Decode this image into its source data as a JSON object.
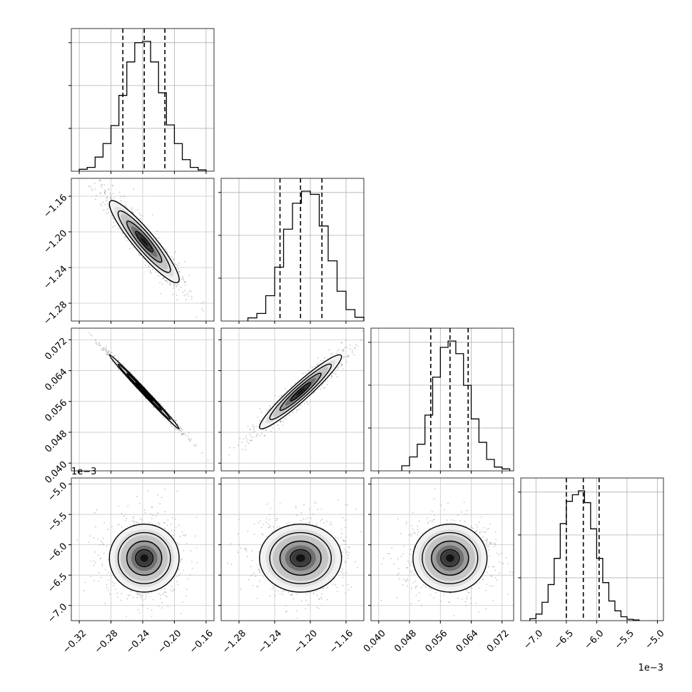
{
  "chart_data": {
    "type": "corner",
    "n_params": 4,
    "grid": true,
    "params": [
      {
        "index": 0,
        "range": [
          -0.33,
          -0.15
        ],
        "ticks": [
          -0.32,
          -0.28,
          -0.24,
          -0.2,
          -0.16
        ],
        "tick_labels": [
          "−0.32",
          "−0.28",
          "−0.24",
          "−0.20",
          "−0.16"
        ],
        "quantiles": [
          -0.265,
          -0.238,
          -0.212
        ],
        "hist_edges": [
          -0.32,
          -0.31,
          -0.3,
          -0.29,
          -0.28,
          -0.27,
          -0.26,
          -0.25,
          -0.24,
          -0.23,
          -0.22,
          -0.21,
          -0.2,
          -0.19,
          -0.18,
          -0.17,
          -0.16
        ],
        "hist_counts": [
          3,
          6,
          22,
          43,
          71,
          118,
          170,
          200,
          202,
          170,
          122,
          72,
          43,
          18,
          6,
          2
        ]
      },
      {
        "index": 1,
        "range": [
          -1.3,
          -1.14
        ],
        "ticks": [
          -1.28,
          -1.24,
          -1.2,
          -1.16
        ],
        "tick_labels": [
          "−1.28",
          "−1.24",
          "−1.20",
          "−1.16"
        ],
        "quantiles": [
          -1.234,
          -1.211,
          -1.187
        ],
        "hist_edges": [
          -1.27,
          -1.26,
          -1.25,
          -1.24,
          -1.23,
          -1.22,
          -1.21,
          -1.2,
          -1.19,
          -1.18,
          -1.17,
          -1.16,
          -1.15,
          -1.14
        ],
        "hist_counts": [
          5,
          12,
          40,
          85,
          145,
          186,
          205,
          200,
          150,
          95,
          47,
          18,
          6
        ]
      },
      {
        "index": 2,
        "range": [
          0.038,
          0.075
        ],
        "ticks": [
          0.04,
          0.048,
          0.056,
          0.064,
          0.072
        ],
        "tick_labels": [
          "0.040",
          "0.048",
          "0.056",
          "0.064",
          "0.072"
        ],
        "quantiles": [
          0.0535,
          0.0585,
          0.0632
        ],
        "hist_edges": [
          0.046,
          0.048,
          0.05,
          0.052,
          0.054,
          0.056,
          0.058,
          0.06,
          0.062,
          0.064,
          0.066,
          0.068,
          0.07,
          0.072,
          0.074
        ],
        "hist_counts": [
          8,
          22,
          42,
          88,
          148,
          195,
          205,
          185,
          135,
          82,
          45,
          18,
          6,
          3
        ]
      },
      {
        "index": 3,
        "range": [
          -7.25,
          -4.9
        ],
        "ticks": [
          -7.0,
          -6.5,
          -6.0,
          -5.5,
          -5.0
        ],
        "tick_labels": [
          "−7.0",
          "−6.5",
          "−6.0",
          "−5.5",
          "−5.0"
        ],
        "sci_label": "1e−3",
        "quantiles": [
          -6.5,
          -6.22,
          -5.96
        ],
        "hist_edges": [
          -7.1,
          -7.0,
          -6.9,
          -6.8,
          -6.7,
          -6.6,
          -6.5,
          -6.4,
          -6.3,
          -6.2,
          -6.1,
          -6.0,
          -5.9,
          -5.8,
          -5.7,
          -5.6,
          -5.5,
          -5.4,
          -5.3
        ],
        "hist_counts": [
          3,
          10,
          28,
          55,
          95,
          148,
          182,
          192,
          198,
          180,
          140,
          95,
          58,
          30,
          15,
          6,
          2,
          1
        ]
      }
    ],
    "pairs": [
      {
        "x": 0,
        "y": 1,
        "center": [
          -0.238,
          -1.211
        ],
        "sd": [
          0.022,
          0.023
        ],
        "rho": -0.92,
        "contours": 3
      },
      {
        "x": 0,
        "y": 2,
        "center": [
          -0.238,
          0.0585
        ],
        "sd": [
          0.022,
          0.0048
        ],
        "rho": -0.995,
        "contours": 3
      },
      {
        "x": 1,
        "y": 2,
        "center": [
          -1.211,
          0.0585
        ],
        "sd": [
          0.023,
          0.0048
        ],
        "rho": 0.95,
        "contours": 3
      },
      {
        "x": 0,
        "y": 3,
        "center": [
          -0.238,
          -6.22
        ],
        "sd": [
          0.022,
          0.28
        ],
        "rho": 0.0,
        "contours": 3
      },
      {
        "x": 1,
        "y": 3,
        "center": [
          -1.211,
          -6.22
        ],
        "sd": [
          0.023,
          0.28
        ],
        "rho": 0.0,
        "contours": 3
      },
      {
        "x": 2,
        "y": 3,
        "center": [
          0.0585,
          -6.22
        ],
        "sd": [
          0.0048,
          0.28
        ],
        "rho": 0.0,
        "contours": 3
      }
    ]
  }
}
